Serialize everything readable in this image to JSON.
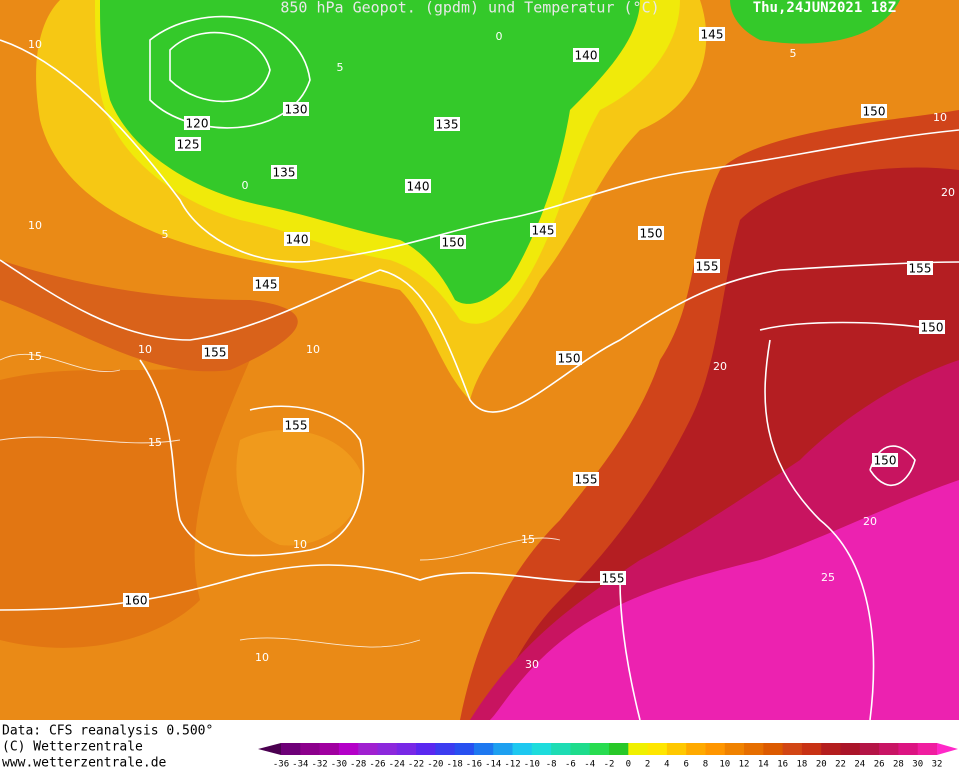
{
  "header": {
    "title": "850 hPa Geopot. (gpdm) und Temperatur (°C)",
    "valid": "Thu,24JUN2021 18Z"
  },
  "footer": {
    "lines": [
      "Data: CFS reanalysis 0.500°",
      "(C) Wetterzentrale",
      "www.wetterzentrale.de"
    ]
  },
  "colorbar": {
    "labels": [
      -36,
      -34,
      -32,
      -30,
      -28,
      -26,
      -24,
      -22,
      -20,
      -18,
      -16,
      -14,
      -12,
      -10,
      -8,
      -6,
      -4,
      -2,
      0,
      2,
      4,
      6,
      8,
      10,
      12,
      14,
      16,
      18,
      20,
      22,
      24,
      26,
      28,
      30,
      32
    ],
    "colors": [
      "#4b0050",
      "#6e0078",
      "#8c008c",
      "#a000a0",
      "#b400c8",
      "#a020d0",
      "#8c28dc",
      "#7828e6",
      "#5a28f0",
      "#3c3cf0",
      "#2850f0",
      "#1e78f0",
      "#1ea0f0",
      "#1ec8f0",
      "#1edcdc",
      "#1edcb4",
      "#1edc8c",
      "#28dc50",
      "#28c828",
      "#f0f000",
      "#ffe600",
      "#ffc800",
      "#ffaa00",
      "#ff9600",
      "#f08200",
      "#e66e00",
      "#dc5a00",
      "#d24614",
      "#c83214",
      "#b41e1e",
      "#aa1428",
      "#b41446",
      "#c81464",
      "#dc1482",
      "#f01ea0",
      "#ff28c8"
    ]
  },
  "map": {
    "geopotential_labels": [
      140,
      145,
      150,
      130,
      120,
      125,
      135,
      135,
      140,
      140,
      150,
      145,
      150,
      155,
      155,
      150,
      145,
      155,
      150,
      155,
      155,
      150,
      160,
      155
    ],
    "temperature_labels": [
      10,
      5,
      0,
      5,
      10,
      15,
      10,
      10,
      15,
      15,
      10,
      10,
      30,
      25,
      20,
      20,
      20,
      10,
      5,
      0
    ]
  }
}
